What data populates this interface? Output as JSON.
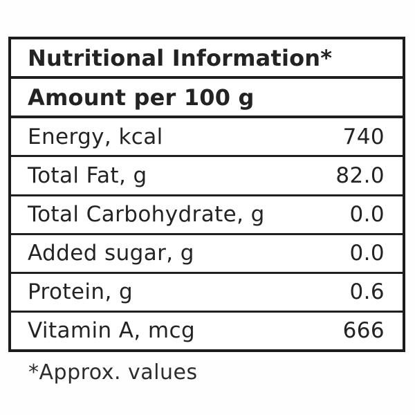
{
  "label": {
    "title": "Nutritional Information*",
    "serving": "Amount per 100 g",
    "rows": [
      {
        "name": "Energy, kcal",
        "value": "740"
      },
      {
        "name": "Total Fat, g",
        "value": "82.0"
      },
      {
        "name": "Total Carbohydrate, g",
        "value": "0.0"
      },
      {
        "name": "Added sugar, g",
        "value": "0.0"
      },
      {
        "name": "Protein, g",
        "value": "0.6"
      },
      {
        "name": "Vitamin A, mcg",
        "value": "666"
      }
    ],
    "footnote": "*Approx. values"
  },
  "colors": {
    "border": "#1e1e1e",
    "text": "#252525",
    "background": "#fefefe"
  }
}
